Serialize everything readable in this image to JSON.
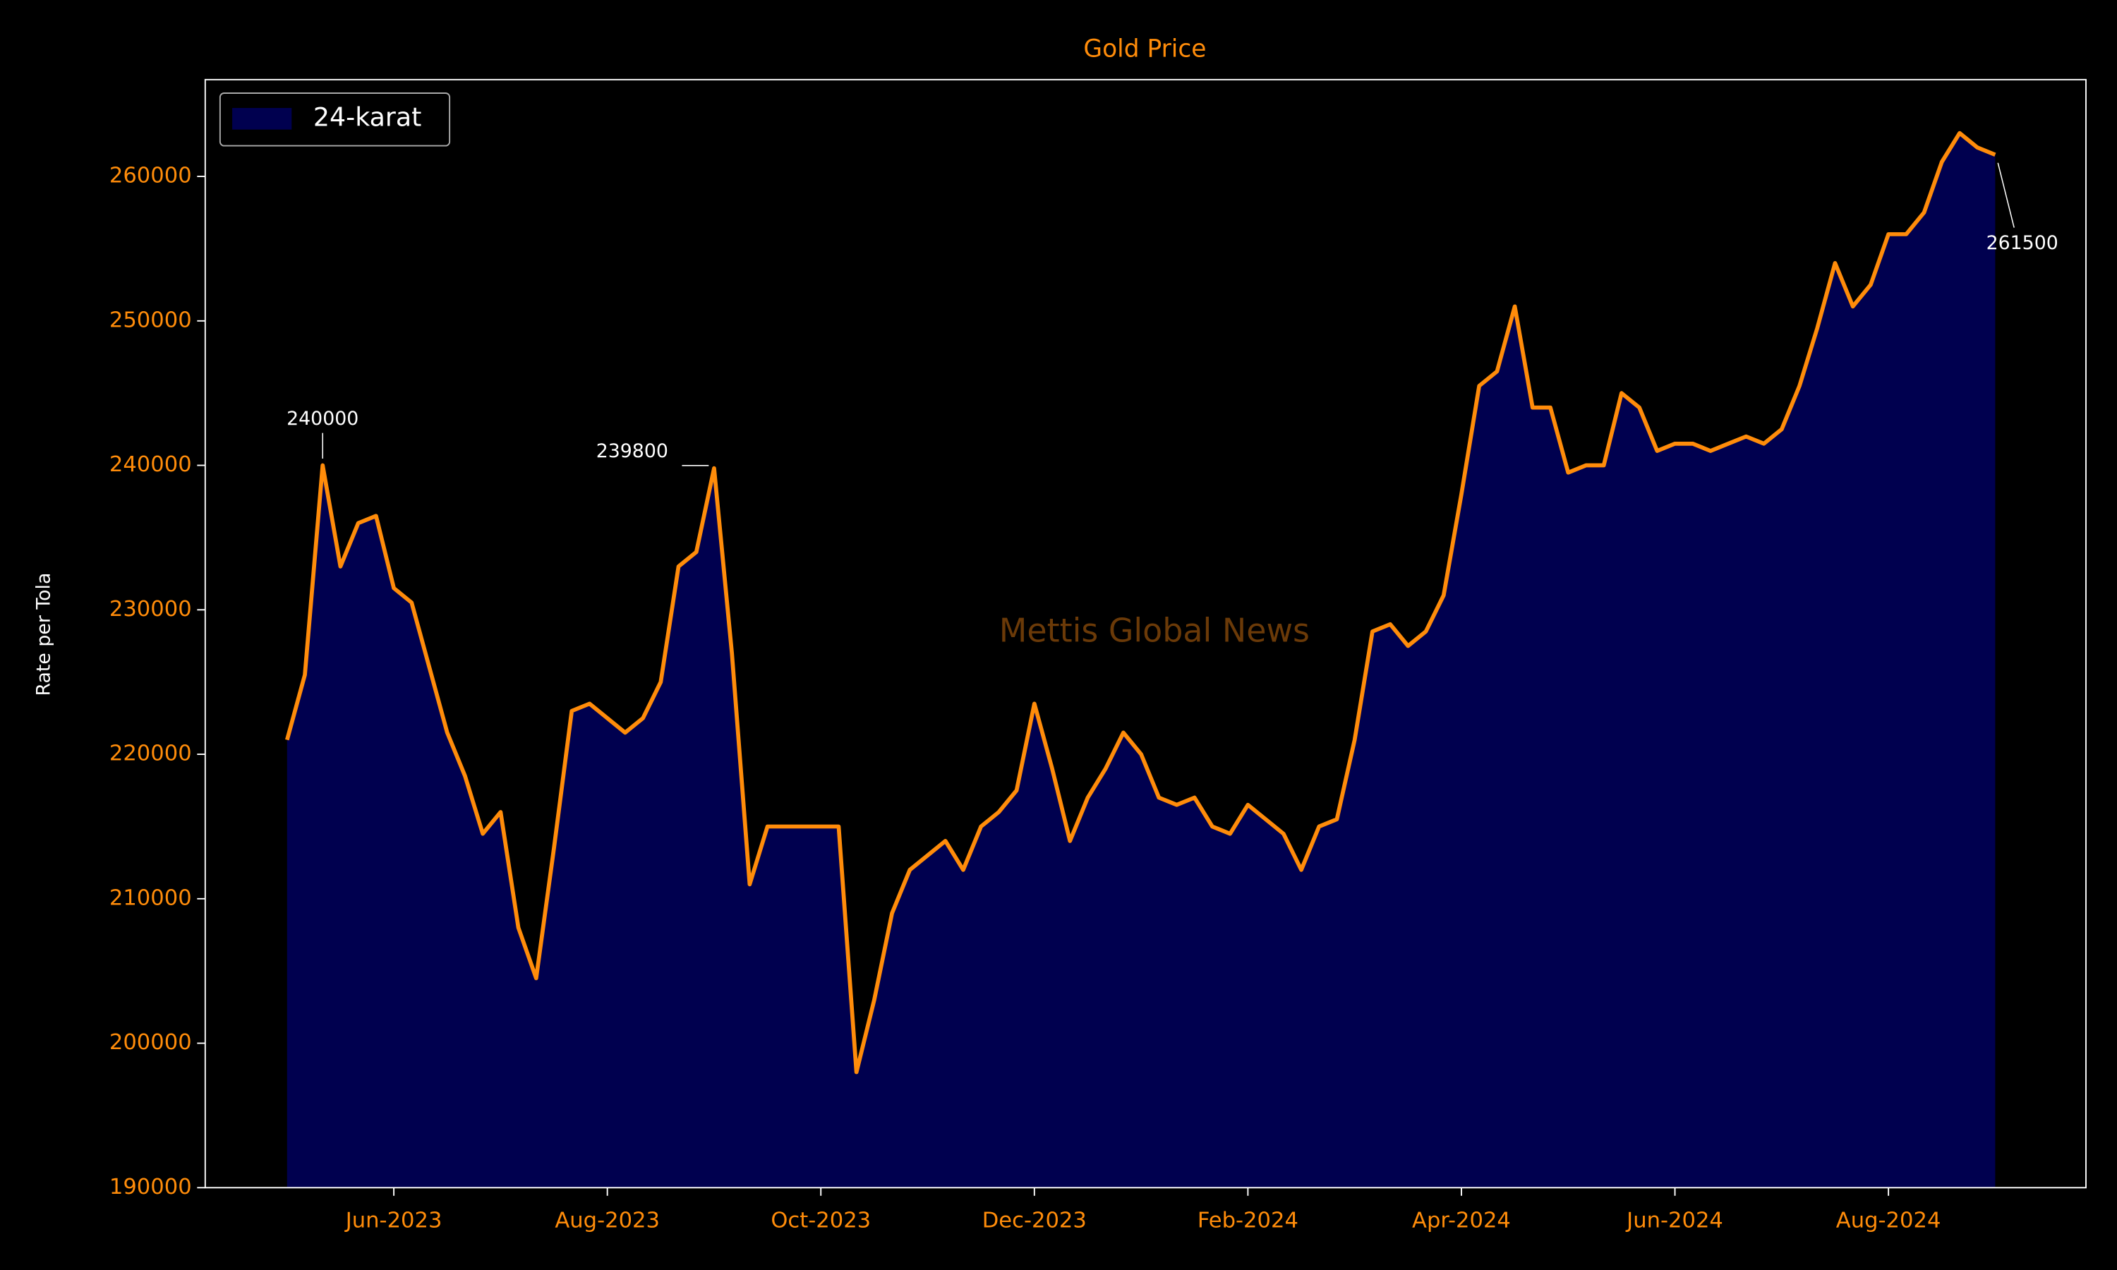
{
  "chart_data": {
    "type": "area_line",
    "title": "Gold Price",
    "ylabel": "Rate per Tola",
    "watermark": "Mettis Global News",
    "legend": "upper left",
    "grid": false,
    "categories": [
      null,
      null,
      null,
      null,
      null,
      null,
      "Jun-2023",
      null,
      null,
      null,
      null,
      null,
      null,
      null,
      null,
      null,
      null,
      null,
      "Aug-2023",
      null,
      null,
      null,
      null,
      null,
      null,
      null,
      null,
      null,
      null,
      null,
      "Oct-2023",
      null,
      null,
      null,
      null,
      null,
      null,
      null,
      null,
      null,
      null,
      null,
      "Dec-2023",
      null,
      null,
      null,
      null,
      null,
      null,
      null,
      null,
      null,
      null,
      null,
      "Feb-2024",
      null,
      null,
      null,
      null,
      null,
      null,
      null,
      null,
      null,
      null,
      null,
      "Apr-2024",
      null,
      null,
      null,
      null,
      null,
      null,
      null,
      null,
      null,
      null,
      null,
      "Jun-2024",
      null,
      null,
      null,
      null,
      null,
      null,
      null,
      null,
      null,
      null,
      null,
      "Aug-2024",
      null,
      null,
      null,
      null,
      null,
      null
    ],
    "series": [
      {
        "name": "24-karat",
        "color": "#ff8c0a",
        "fill_color": "#00004f",
        "values": [
          221000,
          225500,
          240000,
          233000,
          236000,
          236500,
          231500,
          230500,
          226000,
          221500,
          218500,
          214500,
          216000,
          208000,
          204500,
          213500,
          223000,
          223500,
          222500,
          221500,
          222500,
          225000,
          233000,
          234000,
          239800,
          227000,
          211000,
          215000,
          215000,
          215000,
          215000,
          215000,
          198000,
          203000,
          209000,
          212000,
          213000,
          214000,
          212000,
          215000,
          216000,
          217500,
          223500,
          219000,
          214000,
          217000,
          219000,
          221500,
          220000,
          217000,
          216500,
          217000,
          215000,
          214500,
          216500,
          215500,
          214500,
          212000,
          215000,
          215500,
          221000,
          228500,
          229000,
          227500,
          228500,
          231000,
          238000,
          245500,
          246500,
          251000,
          244000,
          244000,
          239500,
          240000,
          240000,
          245000,
          244000,
          241000,
          241500,
          241500,
          241000,
          241500,
          242000,
          241500,
          242500,
          245500,
          249500,
          254000,
          251000,
          252500,
          256000,
          256000,
          257500,
          261000,
          263000,
          262000,
          261500
        ]
      }
    ],
    "annotate_x": [
      2,
      24,
      96
    ],
    "xlim": [
      -4.6,
      101.1
    ],
    "ylim": [
      190000,
      266700
    ],
    "yticks": [
      190000,
      200000,
      210000,
      220000,
      230000,
      240000,
      250000,
      260000
    ]
  }
}
